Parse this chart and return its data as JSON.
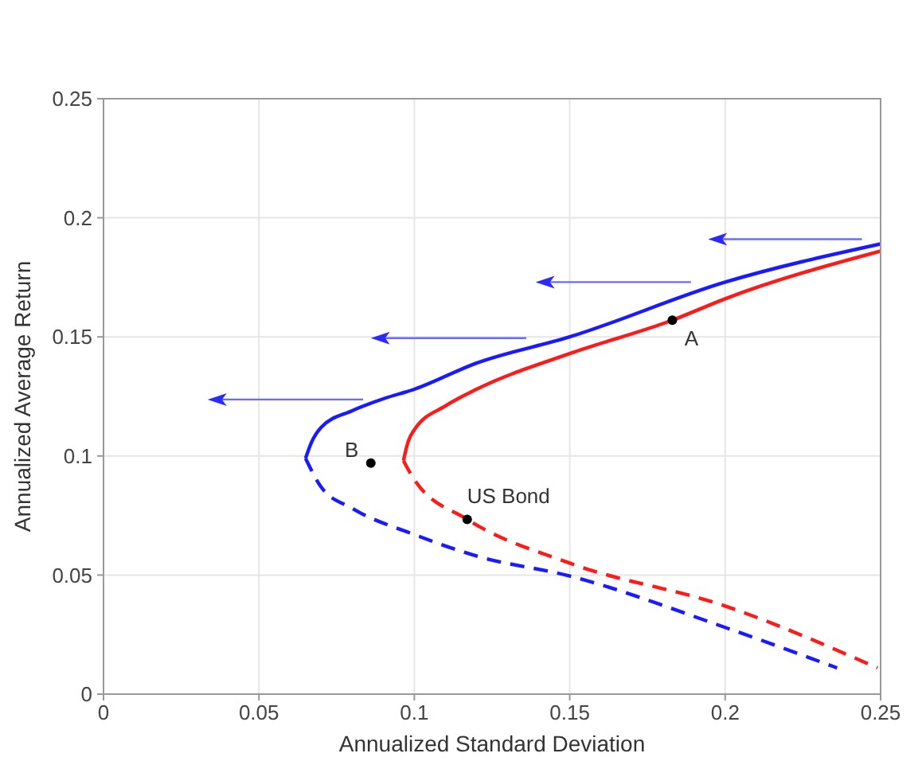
{
  "chart_data": {
    "type": "line",
    "xlabel": "Annualized Standard Deviation",
    "ylabel": "Annualized Average Return",
    "xlim": [
      0,
      0.25
    ],
    "ylim": [
      0,
      0.25
    ],
    "xticks": [
      0,
      0.05,
      0.1,
      0.15,
      0.2,
      0.25
    ],
    "yticks": [
      0,
      0.05,
      0.1,
      0.15,
      0.2,
      0.25
    ],
    "grid": true,
    "series": [
      {
        "color": "#1a1aff",
        "line_style": "solid",
        "x": [
          0.065,
          0.067,
          0.07,
          0.08,
          0.09,
          0.1,
          0.12,
          0.15,
          0.2,
          0.25
        ],
        "values": [
          0.099,
          0.106,
          0.112,
          0.119,
          0.124,
          0.128,
          0.139,
          0.15,
          0.173,
          0.189
        ]
      },
      {
        "color": "#1a1aff",
        "line_style": "dashed",
        "x": [
          0.065,
          0.07,
          0.08,
          0.1,
          0.12,
          0.15,
          0.2,
          0.236
        ],
        "values": [
          0.099,
          0.087,
          0.078,
          0.067,
          0.058,
          0.0496,
          0.028,
          0.011
        ]
      },
      {
        "color": "#ff1a1a",
        "line_style": "solid",
        "x": [
          0.0965,
          0.098,
          0.1,
          0.11,
          0.12,
          0.15,
          0.183,
          0.2,
          0.25
        ],
        "values": [
          0.098,
          0.106,
          0.111,
          0.121,
          0.128,
          0.143,
          0.157,
          0.166,
          0.186
        ]
      },
      {
        "color": "#ff1a1a",
        "line_style": "dashed",
        "x": [
          0.0965,
          0.1,
          0.117,
          0.15,
          0.2,
          0.249
        ],
        "values": [
          0.098,
          0.09,
          0.0734,
          0.055,
          0.037,
          0.011
        ]
      },
      {
        "type": "scatter",
        "color": "#000000",
        "x": [
          0.183,
          0.086,
          0.117
        ],
        "values": [
          0.157,
          0.097,
          0.0734
        ]
      }
    ],
    "annotations": [
      {
        "text": "A",
        "x": 0.183,
        "y": 0.157
      },
      {
        "text": "B",
        "x": 0.086,
        "y": 0.097
      },
      {
        "text": "US Bond",
        "x": 0.117,
        "y": 0.0734
      }
    ]
  }
}
